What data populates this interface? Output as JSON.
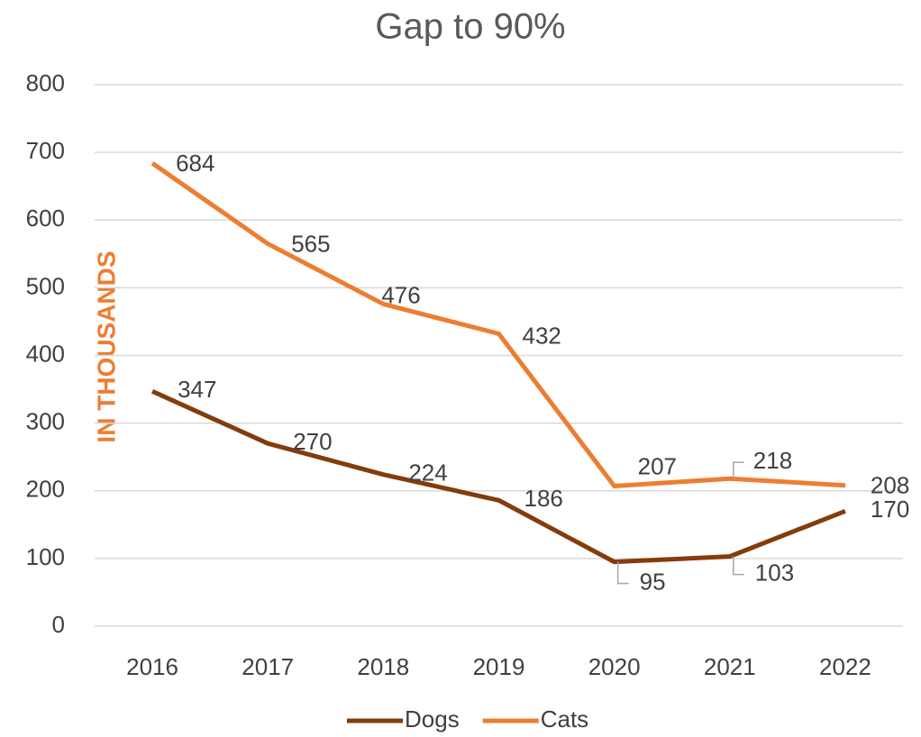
{
  "chart_data": {
    "type": "line",
    "title": "Gap to 90%",
    "y_label": "IN THOUSANDS",
    "categories": [
      "2016",
      "2017",
      "2018",
      "2019",
      "2020",
      "2021",
      "2022"
    ],
    "series": [
      {
        "name": "Dogs",
        "color": "#843c0c",
        "values": [
          347,
          270,
          224,
          186,
          95,
          103,
          170
        ]
      },
      {
        "name": "Cats",
        "color": "#ed7d31",
        "values": [
          684,
          565,
          476,
          432,
          207,
          218,
          208
        ]
      }
    ],
    "ylim": [
      0,
      800
    ],
    "yticks": [
      0,
      100,
      200,
      300,
      400,
      500,
      600,
      700,
      800
    ],
    "grid": true,
    "legend": "bottom"
  }
}
